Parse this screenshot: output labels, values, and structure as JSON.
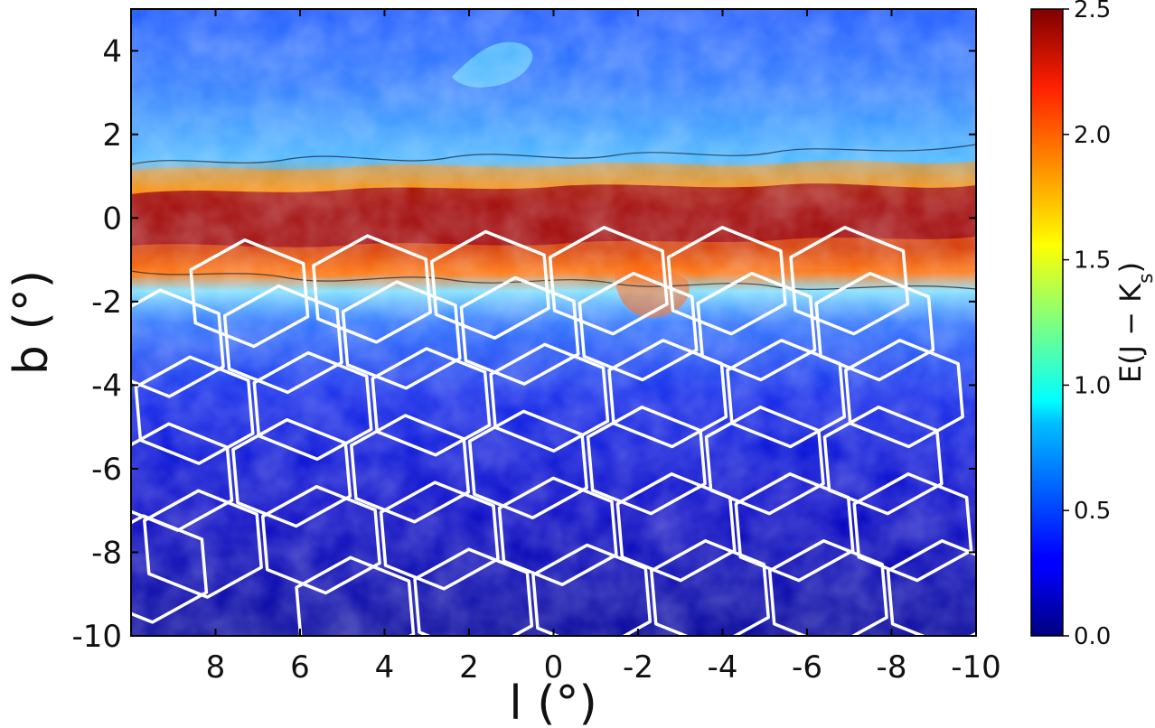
{
  "chart_data": {
    "type": "heatmap",
    "title": "",
    "xlabel": "l (°)",
    "ylabel": "b (°)",
    "xlim": [
      10,
      -10
    ],
    "ylim": [
      -10,
      5
    ],
    "x_ticks": [
      8,
      6,
      4,
      2,
      0,
      -2,
      -4,
      -6,
      -8,
      -10
    ],
    "x_tick_labels": [
      "8",
      "6",
      "4",
      "2",
      "0",
      "-2",
      "-4",
      "-6",
      "-8",
      "-10"
    ],
    "y_ticks": [
      4,
      2,
      0,
      -2,
      -4,
      -6,
      -8,
      -10
    ],
    "y_tick_labels": [
      "4",
      "2",
      "0",
      "-2",
      "-4",
      "-6",
      "-8",
      "-10"
    ],
    "colormap": "jet",
    "colorbar": {
      "label": "E(J − K",
      "label_subscript": "s",
      "label_close": ")",
      "range": [
        0.0,
        2.5
      ],
      "ticks": [
        0.0,
        0.5,
        1.0,
        1.5,
        2.0,
        2.5
      ],
      "tick_labels": [
        "0.0",
        "0.5",
        "1.0",
        "1.5",
        "2.0",
        "2.5"
      ]
    },
    "extinction_band": {
      "center_b": -0.1,
      "peak_value": 2.5,
      "background_value": 0.15
    },
    "overlay": {
      "shape": "hexagon",
      "color": "#ffffff",
      "tiles": [
        {
          "l": 7.2,
          "b": -1.8
        },
        {
          "l": 4.3,
          "b": -1.7
        },
        {
          "l": 1.5,
          "b": -1.6
        },
        {
          "l": -1.3,
          "b": -1.5
        },
        {
          "l": -4.1,
          "b": -1.5
        },
        {
          "l": -7.0,
          "b": -1.5
        },
        {
          "l": 9.2,
          "b": -3.0
        },
        {
          "l": 6.4,
          "b": -2.9
        },
        {
          "l": 3.6,
          "b": -2.8
        },
        {
          "l": 0.8,
          "b": -2.7
        },
        {
          "l": -2.0,
          "b": -2.6
        },
        {
          "l": -4.8,
          "b": -2.6
        },
        {
          "l": -7.6,
          "b": -2.6
        },
        {
          "l": 8.5,
          "b": -4.6
        },
        {
          "l": 5.7,
          "b": -4.5
        },
        {
          "l": 2.9,
          "b": -4.4
        },
        {
          "l": 0.1,
          "b": -4.3
        },
        {
          "l": -2.7,
          "b": -4.2
        },
        {
          "l": -5.5,
          "b": -4.2
        },
        {
          "l": -8.3,
          "b": -4.2
        },
        {
          "l": 9.0,
          "b": -6.2
        },
        {
          "l": 6.2,
          "b": -6.1
        },
        {
          "l": 3.4,
          "b": -6.0
        },
        {
          "l": 0.6,
          "b": -5.9
        },
        {
          "l": -2.2,
          "b": -5.8
        },
        {
          "l": -5.0,
          "b": -5.8
        },
        {
          "l": -7.8,
          "b": -5.8
        },
        {
          "l": 8.3,
          "b": -7.8
        },
        {
          "l": 5.5,
          "b": -7.7
        },
        {
          "l": 2.7,
          "b": -7.6
        },
        {
          "l": -0.1,
          "b": -7.5
        },
        {
          "l": -2.9,
          "b": -7.4
        },
        {
          "l": -5.7,
          "b": -7.4
        },
        {
          "l": -8.5,
          "b": -7.4
        },
        {
          "l": 1.9,
          "b": -9.2
        },
        {
          "l": -0.9,
          "b": -9.1
        },
        {
          "l": -3.7,
          "b": -9.0
        },
        {
          "l": -6.5,
          "b": -9.0
        },
        {
          "l": -9.3,
          "b": -9.0
        },
        {
          "l": 9.6,
          "b": -8.4
        },
        {
          "l": 4.7,
          "b": -9.4
        }
      ]
    }
  }
}
